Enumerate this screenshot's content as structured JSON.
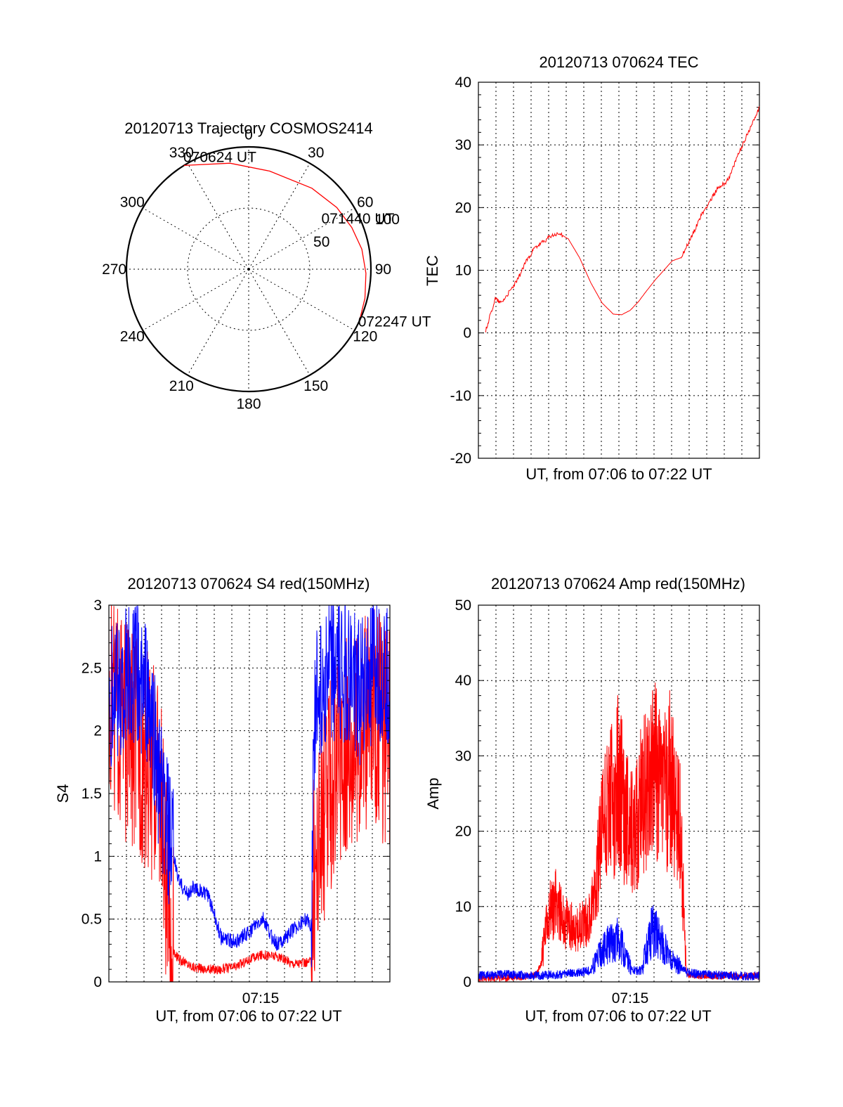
{
  "colors": {
    "red_series": "#ff0000",
    "blue_series": "#0000ff",
    "axis": "#000000"
  },
  "chart_data": [
    {
      "id": "polar",
      "type": "polar",
      "title": "20120713 Trajectory COSMOS2414",
      "azimuth_labels": [
        "0",
        "30",
        "60",
        "90",
        "120",
        "150",
        "180",
        "210",
        "240",
        "270",
        "300",
        "330"
      ],
      "radial_ticks": [
        {
          "label": "50",
          "r": 50
        },
        {
          "label": "100",
          "r": 100
        }
      ],
      "r_max": 100,
      "trajectory": {
        "color": "#ff0000",
        "points": [
          {
            "az": 328,
            "r": 100
          },
          {
            "az": 350,
            "r": 88
          },
          {
            "az": 12,
            "r": 82
          },
          {
            "az": 38,
            "r": 84
          },
          {
            "az": 55,
            "r": 88
          },
          {
            "az": 68,
            "r": 91
          },
          {
            "az": 80,
            "r": 94
          },
          {
            "az": 92,
            "r": 96
          },
          {
            "az": 104,
            "r": 98
          },
          {
            "az": 115,
            "r": 100
          }
        ]
      },
      "annotations": [
        {
          "text": "070624 UT",
          "az": 330,
          "r": 100
        },
        {
          "text": "071440 UT",
          "az": 60,
          "r": 70
        },
        {
          "text": "072247 UT",
          "az": 115,
          "r": 100
        }
      ]
    },
    {
      "id": "tec",
      "type": "line",
      "title": "20120713 070624 TEC",
      "xlabel": "UT, from 07:06 to 07:22 UT",
      "ylabel": "TEC",
      "xlim": [
        0,
        1
      ],
      "ylim": [
        -20,
        40
      ],
      "yticks": [
        "-20",
        "-10",
        "0",
        "10",
        "20",
        "30",
        "40"
      ],
      "xticks": [],
      "vertical_grid_count": 15,
      "grid": true,
      "series": [
        {
          "color": "#ff0000",
          "x": [
            0.025,
            0.04,
            0.06,
            0.08,
            0.11,
            0.14,
            0.17,
            0.2,
            0.23,
            0.26,
            0.29,
            0.32,
            0.36,
            0.4,
            0.44,
            0.48,
            0.51,
            0.54,
            0.57,
            0.6,
            0.63,
            0.66,
            0.69,
            0.72,
            0.75,
            0.79,
            0.81,
            0.83,
            0.85,
            0.88,
            0.9,
            0.92,
            0.94,
            0.96,
            0.98,
            1.0
          ],
          "y": [
            0.2,
            2.5,
            5.5,
            4.8,
            6.5,
            8.5,
            11.5,
            13.5,
            14.5,
            15.5,
            15.8,
            15.0,
            12.0,
            8.0,
            4.8,
            3.0,
            2.9,
            3.6,
            5.0,
            6.8,
            8.5,
            10.0,
            11.5,
            12.0,
            14.5,
            18.5,
            20.0,
            21.5,
            23.0,
            24.0,
            25.5,
            28.0,
            30.0,
            32.0,
            34.0,
            36.0
          ]
        }
      ]
    },
    {
      "id": "s4",
      "type": "line",
      "title": "20120713 070624 S4 red(150MHz)",
      "xlabel": "UT, from 07:06 to 07:22 UT",
      "ylabel": "S4",
      "xlim": [
        0,
        1
      ],
      "ylim": [
        0,
        3
      ],
      "yticks": [
        "0",
        "0.5",
        "1",
        "1.5",
        "2",
        "2.5",
        "3"
      ],
      "xticks": [
        {
          "label": "07:15",
          "x": 0.54
        }
      ],
      "vertical_grid_count": 15,
      "grid": true,
      "series": [
        {
          "color": "#ff0000",
          "x": [
            0.0,
            0.05,
            0.12,
            0.18,
            0.2,
            0.22,
            0.25,
            0.3,
            0.35,
            0.4,
            0.45,
            0.5,
            0.55,
            0.6,
            0.65,
            0.7,
            0.72,
            0.73,
            0.76,
            0.8,
            0.85,
            0.9,
            0.95,
            1.0
          ],
          "y": [
            2.4,
            2.0,
            1.8,
            1.6,
            0.8,
            0.25,
            0.18,
            0.12,
            0.1,
            0.1,
            0.12,
            0.18,
            0.22,
            0.2,
            0.15,
            0.15,
            0.16,
            0.9,
            1.3,
            1.6,
            1.9,
            2.0,
            2.1,
            1.9
          ]
        },
        {
          "color": "#0000ff",
          "x": [
            0.0,
            0.05,
            0.1,
            0.15,
            0.18,
            0.22,
            0.25,
            0.28,
            0.3,
            0.35,
            0.38,
            0.4,
            0.45,
            0.5,
            0.55,
            0.58,
            0.6,
            0.65,
            0.7,
            0.72,
            0.73,
            0.76,
            0.8,
            0.85,
            0.9,
            0.95,
            1.0
          ],
          "y": [
            2.2,
            2.4,
            2.5,
            2.1,
            1.6,
            1.1,
            0.8,
            0.7,
            0.75,
            0.7,
            0.5,
            0.35,
            0.32,
            0.4,
            0.5,
            0.35,
            0.3,
            0.4,
            0.5,
            0.45,
            2.1,
            2.4,
            2.5,
            2.4,
            2.3,
            2.5,
            2.4
          ]
        }
      ]
    },
    {
      "id": "amp",
      "type": "line",
      "title": "20120713 070624 Amp red(150MHz)",
      "xlabel": "UT, from 07:06 to 07:22 UT",
      "ylabel": "Amp",
      "xlim": [
        0,
        1
      ],
      "ylim": [
        0,
        50
      ],
      "yticks": [
        "0",
        "10",
        "20",
        "30",
        "40",
        "50"
      ],
      "xticks": [
        {
          "label": "07:15",
          "x": 0.54
        }
      ],
      "vertical_grid_count": 15,
      "grid": true,
      "series": [
        {
          "color": "#ff0000",
          "x": [
            0.0,
            0.1,
            0.2,
            0.22,
            0.25,
            0.28,
            0.3,
            0.35,
            0.4,
            0.42,
            0.45,
            0.48,
            0.5,
            0.52,
            0.55,
            0.58,
            0.6,
            0.63,
            0.65,
            0.68,
            0.7,
            0.72,
            0.74,
            0.8,
            0.9,
            1.0
          ],
          "y": [
            0.5,
            0.5,
            0.8,
            2.0,
            9.0,
            11.0,
            8.0,
            7.0,
            8.5,
            15.0,
            22.0,
            24.0,
            28.0,
            22.0,
            20.0,
            24.0,
            26.0,
            28.0,
            25.0,
            27.0,
            24.0,
            20.0,
            1.0,
            0.8,
            0.8,
            0.8
          ]
        },
        {
          "color": "#0000ff",
          "x": [
            0.0,
            0.1,
            0.2,
            0.3,
            0.35,
            0.4,
            0.42,
            0.45,
            0.48,
            0.5,
            0.52,
            0.55,
            0.58,
            0.6,
            0.62,
            0.65,
            0.68,
            0.7,
            0.72,
            0.74,
            0.8,
            0.9,
            1.0
          ],
          "y": [
            0.8,
            1.0,
            0.8,
            1.0,
            1.2,
            1.5,
            3.0,
            4.5,
            5.5,
            6.0,
            3.5,
            1.5,
            1.5,
            4.5,
            7.0,
            5.5,
            3.0,
            2.5,
            2.0,
            1.2,
            1.0,
            0.8,
            0.8
          ]
        }
      ]
    }
  ]
}
